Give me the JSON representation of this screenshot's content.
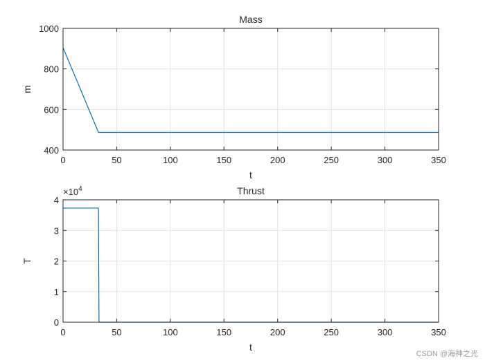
{
  "chart_data": [
    {
      "type": "line",
      "title": "Mass",
      "xlabel": "t",
      "ylabel": "m",
      "xlim": [
        0,
        350
      ],
      "ylim": [
        400,
        1000
      ],
      "xticks": [
        0,
        50,
        100,
        150,
        200,
        250,
        300,
        350
      ],
      "yticks": [
        400,
        600,
        800,
        1000
      ],
      "grid": true,
      "series": [
        {
          "color": "#0072bd",
          "x": [
            0,
            33,
            350
          ],
          "y": [
            905,
            487,
            487
          ]
        }
      ]
    },
    {
      "type": "line",
      "title": "Thrust",
      "xlabel": "t",
      "ylabel": "T",
      "xlim": [
        0,
        350
      ],
      "ylim": [
        0,
        4
      ],
      "xticks": [
        0,
        50,
        100,
        150,
        200,
        250,
        300,
        350
      ],
      "yticks": [
        0,
        1,
        2,
        3,
        4
      ],
      "exponent_label": "×10",
      "exponent_power": "4",
      "grid": true,
      "series": [
        {
          "color": "#0072bd",
          "x": [
            0,
            33,
            33.5,
            350
          ],
          "y": [
            3.73,
            3.73,
            0,
            0
          ]
        }
      ]
    }
  ],
  "watermark": "CSDN @海神之光"
}
